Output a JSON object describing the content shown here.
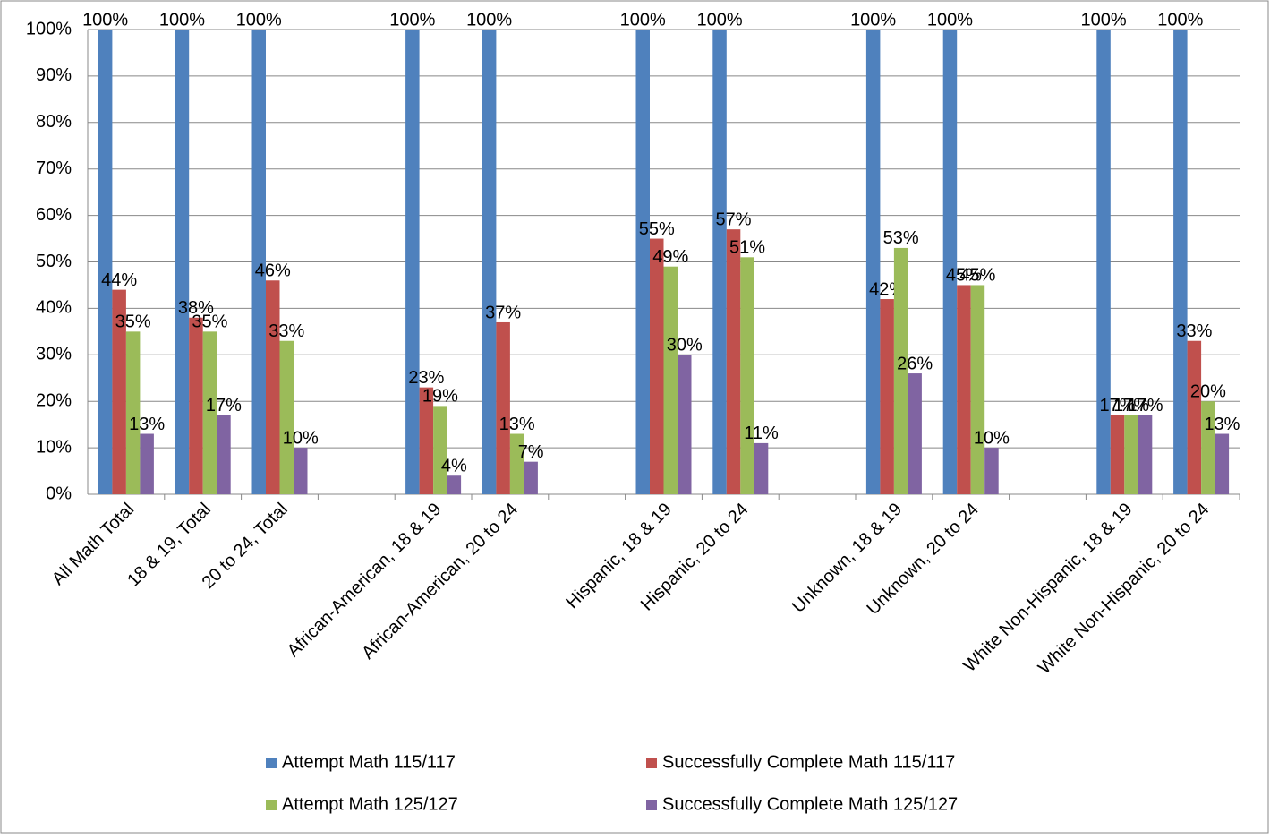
{
  "chart_data": {
    "type": "bar",
    "categories": [
      "All Math Total",
      "18 & 19, Total",
      "20 to 24, Total",
      null,
      "African-American, 18 & 19",
      "African-American, 20 to 24",
      null,
      "Hispanic, 18 & 19",
      "Hispanic, 20 to 24",
      null,
      "Unknown, 18 & 19",
      "Unknown, 20 to 24",
      null,
      "White Non-Hispanic, 18 & 19",
      "White Non-Hispanic, 20 to 24"
    ],
    "series": [
      {
        "name": "Attempt Math 115/117",
        "color": "#4f81bd",
        "values": [
          100,
          100,
          100,
          null,
          100,
          100,
          null,
          100,
          100,
          null,
          100,
          100,
          null,
          100,
          100
        ],
        "value_labels": [
          "100%",
          "100%",
          "100%",
          null,
          "100%",
          "100%",
          null,
          "100%",
          "100%",
          null,
          "100%",
          "100%",
          null,
          "100%",
          "100%"
        ]
      },
      {
        "name": "Successfully Complete Math 115/117",
        "color": "#c0504d",
        "values": [
          44,
          38,
          46,
          null,
          23,
          37,
          null,
          55,
          57,
          null,
          42,
          45,
          null,
          17,
          33
        ],
        "value_labels": [
          "44%",
          "38%",
          "46%",
          null,
          "23%",
          "37%",
          null,
          "55%",
          "57%",
          null,
          "42%",
          "45%",
          null,
          "17%",
          "33%"
        ]
      },
      {
        "name": "Attempt Math 125/127",
        "color": "#9bbb59",
        "values": [
          35,
          35,
          33,
          null,
          19,
          13,
          null,
          49,
          51,
          null,
          53,
          45,
          null,
          17,
          20
        ],
        "value_labels": [
          "35%",
          "35%",
          "33%",
          null,
          "19%",
          "13%",
          null,
          "49%",
          "51%",
          null,
          "53%",
          "45%",
          null,
          "17%",
          "20%"
        ]
      },
      {
        "name": "Successfully Complete Math 125/127",
        "color": "#8064a2",
        "values": [
          13,
          17,
          10,
          null,
          4,
          7,
          null,
          30,
          11,
          null,
          26,
          10,
          null,
          17,
          13
        ],
        "value_labels": [
          "13%",
          "17%",
          "10%",
          null,
          "4%",
          "7%",
          null,
          "30%",
          "11%",
          null,
          "26%",
          "10%",
          null,
          "17%",
          "13%"
        ]
      }
    ],
    "ylim": [
      0,
      100
    ],
    "yticks": [
      {
        "value": 0,
        "label": "0%"
      },
      {
        "value": 10,
        "label": "10%"
      },
      {
        "value": 20,
        "label": "20%"
      },
      {
        "value": 30,
        "label": "30%"
      },
      {
        "value": 40,
        "label": "40%"
      },
      {
        "value": 50,
        "label": "50%"
      },
      {
        "value": 60,
        "label": "60%"
      },
      {
        "value": 70,
        "label": "70%"
      },
      {
        "value": 80,
        "label": "80%"
      },
      {
        "value": 90,
        "label": "90%"
      },
      {
        "value": 100,
        "label": "100%"
      }
    ],
    "grid": true,
    "legend": "bottom"
  }
}
